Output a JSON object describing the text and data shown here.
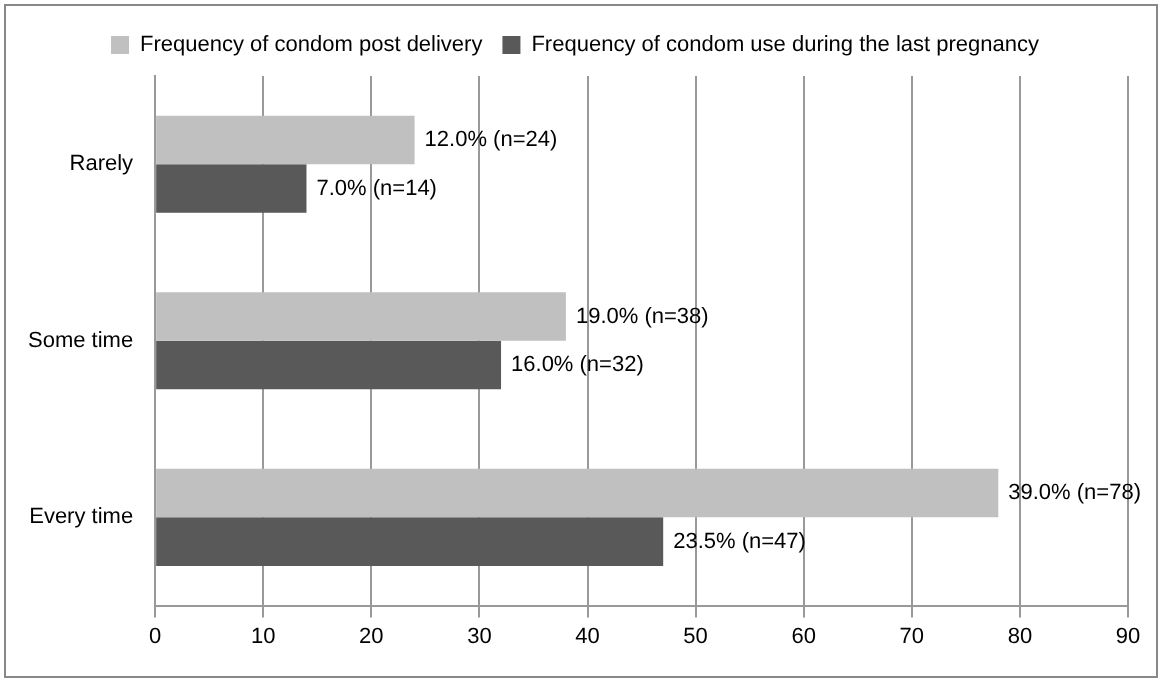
{
  "chart_data": {
    "type": "bar",
    "orientation": "horizontal",
    "categories": [
      "Rarely",
      "Some time",
      "Every time"
    ],
    "series": [
      {
        "name": "Frequency of condom post delivery",
        "color": "#c0c0c0",
        "values": [
          24,
          38,
          78
        ],
        "value_labels": [
          "12.0% (n=24)",
          "19.0% (n=38)",
          "39.0% (n=78)"
        ]
      },
      {
        "name": "Frequency of condom use during the last pregnancy",
        "color": "#595959",
        "values": [
          14,
          32,
          47
        ],
        "value_labels": [
          "7.0% (n=14)",
          "16.0% (n=32)",
          "23.5% (n=47)"
        ]
      }
    ],
    "xlim": [
      0,
      90
    ],
    "xticks": [
      0,
      10,
      20,
      30,
      40,
      50,
      60,
      70,
      80,
      90
    ],
    "grid": "x",
    "legend": "top"
  }
}
